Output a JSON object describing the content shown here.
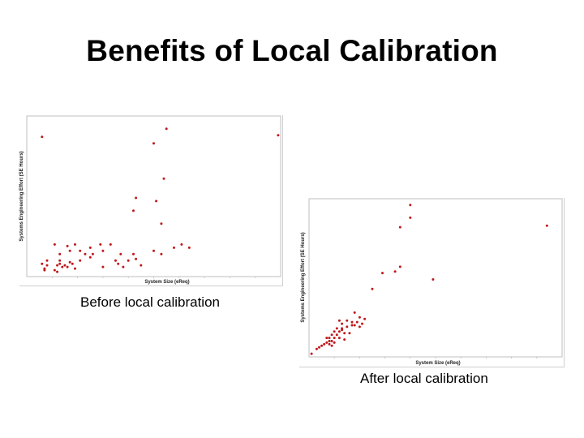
{
  "slide": {
    "title": "Benefits of Local Calibration"
  },
  "colors": {
    "point": "#c0181c",
    "frame": "#bfbfbf",
    "background": "#ffffff"
  },
  "chart_data": [
    {
      "type": "scatter",
      "caption": "Before local calibration",
      "xlabel": "System Size (eReq)",
      "ylabel": "Systems Engineering Effort (SE Hours)",
      "xlim": [
        0,
        100
      ],
      "ylim": [
        0,
        100
      ],
      "grid": false,
      "series": [
        {
          "points": [
            [
              6,
              87
            ],
            [
              50,
              83
            ],
            [
              55,
              92
            ],
            [
              99,
              88
            ],
            [
              54,
              61
            ],
            [
              43,
              49
            ],
            [
              42,
              41
            ],
            [
              51,
              47
            ],
            [
              53,
              33
            ],
            [
              11,
              20
            ],
            [
              16,
              19
            ],
            [
              19,
              20
            ],
            [
              17,
              16
            ],
            [
              13,
              14
            ],
            [
              25,
              18
            ],
            [
              21,
              16
            ],
            [
              26,
              14
            ],
            [
              29,
              20
            ],
            [
              30,
              16
            ],
            [
              33,
              20
            ],
            [
              37,
              14
            ],
            [
              40,
              10
            ],
            [
              42,
              14
            ],
            [
              53,
              14
            ],
            [
              43,
              11
            ],
            [
              58,
              18
            ],
            [
              61,
              20
            ],
            [
              64,
              18
            ],
            [
              50,
              16
            ],
            [
              35,
              10
            ],
            [
              6,
              8
            ],
            [
              7,
              5
            ],
            [
              7,
              4
            ],
            [
              8,
              10
            ],
            [
              8,
              7
            ],
            [
              11,
              4
            ],
            [
              12,
              3
            ],
            [
              13,
              10
            ],
            [
              13,
              8
            ],
            [
              14,
              6
            ],
            [
              15,
              7
            ],
            [
              17,
              9
            ],
            [
              16,
              6
            ],
            [
              18,
              8
            ],
            [
              19,
              5
            ],
            [
              21,
              10
            ],
            [
              23,
              14
            ],
            [
              25,
              12
            ],
            [
              30,
              6
            ],
            [
              36,
              8
            ],
            [
              38,
              6
            ],
            [
              45,
              7
            ],
            [
              12,
              7
            ]
          ]
        }
      ]
    },
    {
      "type": "scatter",
      "caption": "After local calibration",
      "xlabel": "System Size (eReq)",
      "ylabel": "Systems Engineering Effort (SE Hours)",
      "xlim": [
        0,
        100
      ],
      "ylim": [
        0,
        100
      ],
      "grid": false,
      "series": [
        {
          "points": [
            [
              40,
              96
            ],
            [
              40,
              88
            ],
            [
              36,
              82
            ],
            [
              94,
              83
            ],
            [
              36,
              57
            ],
            [
              34,
              54
            ],
            [
              29,
              53
            ],
            [
              49,
              49
            ],
            [
              25,
              43
            ],
            [
              18,
              28
            ],
            [
              15,
              23
            ],
            [
              17,
              22
            ],
            [
              12,
              23
            ],
            [
              20,
              25
            ],
            [
              21,
              21
            ],
            [
              18,
              20
            ],
            [
              17,
              20
            ],
            [
              15,
              19
            ],
            [
              14,
              15
            ],
            [
              13,
              17
            ],
            [
              11,
              14
            ],
            [
              12,
              12
            ],
            [
              10,
              12
            ],
            [
              9,
              10
            ],
            [
              8,
              12
            ],
            [
              8,
              10
            ],
            [
              7,
              9
            ],
            [
              7,
              12
            ],
            [
              9,
              14
            ],
            [
              10,
              16
            ],
            [
              12,
              16
            ],
            [
              13,
              18
            ],
            [
              5,
              7
            ],
            [
              4,
              6
            ],
            [
              6,
              8
            ],
            [
              3,
              5
            ],
            [
              8,
              8
            ],
            [
              11,
              18
            ],
            [
              16,
              15
            ],
            [
              19,
              22
            ],
            [
              22,
              24
            ],
            [
              13,
              21
            ],
            [
              14,
              11
            ],
            [
              9,
              7
            ],
            [
              10,
              9
            ],
            [
              1,
              2
            ],
            [
              20,
              19
            ]
          ]
        }
      ]
    }
  ]
}
